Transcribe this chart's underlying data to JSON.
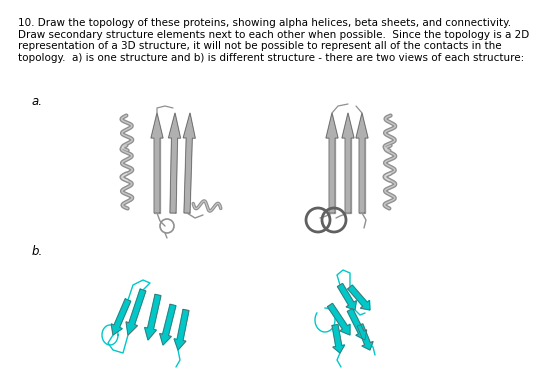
{
  "background_color": "#ffffff",
  "line1": "10. Draw the topology of these proteins, showing alpha helices, beta sheets, and connectivity.",
  "line2": "Draw secondary structure elements next to each other when possible.  Since the topology is a 2D",
  "line3": "representation of a 3D structure, it will not be possible to represent all of the contacts in the",
  "line4": "topology.  a) is one structure and b) is different structure - there are two views of each structure:",
  "label_a": "a.",
  "label_b": "b.",
  "text_fontsize": 7.5,
  "label_fontsize": 8.5,
  "gray_h": "#909090",
  "gray_s": "#b0b0b0",
  "gray_d": "#606060",
  "cyan_c": "#00c8c8",
  "cyan_d": "#009898"
}
